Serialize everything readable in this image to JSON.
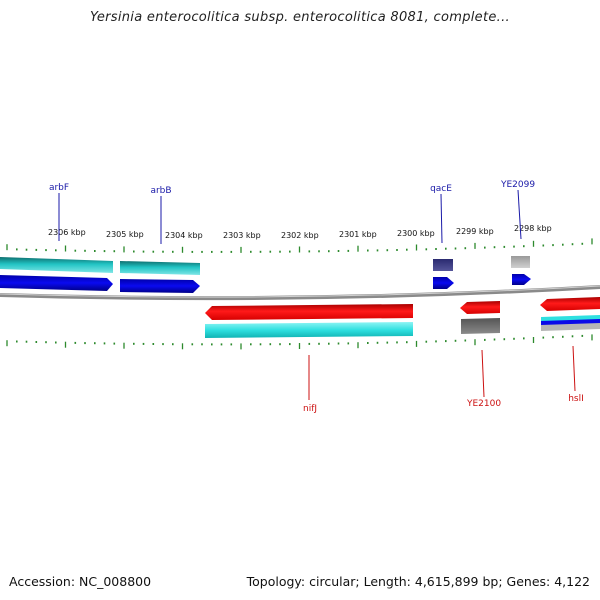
{
  "title": "Yersinia enterocolitica subsp. enterocolitica 8081, complete...",
  "accession": "Accession: NC_008800",
  "summary": "Topology: circular; Length: 4,615,899 bp; Genes: 4,122",
  "colors": {
    "forward_label": "#1a1aa8",
    "reverse_label": "#cc1111",
    "tick": "#2d8a2d",
    "backbone": "#8a8a8a"
  },
  "scale": {
    "unit": "kbp",
    "labels": [
      "2306 kbp",
      "2305 kbp",
      "2304 kbp",
      "2303 kbp",
      "2302 kbp",
      "2301 kbp",
      "2300 kbp",
      "2299 kbp",
      "2298 kbp"
    ]
  },
  "gene_labels": {
    "forward": [
      "arbF",
      "arbB",
      "qacE",
      "YE2099"
    ],
    "reverse": [
      "nifJ",
      "YE2100",
      "hslI"
    ]
  }
}
